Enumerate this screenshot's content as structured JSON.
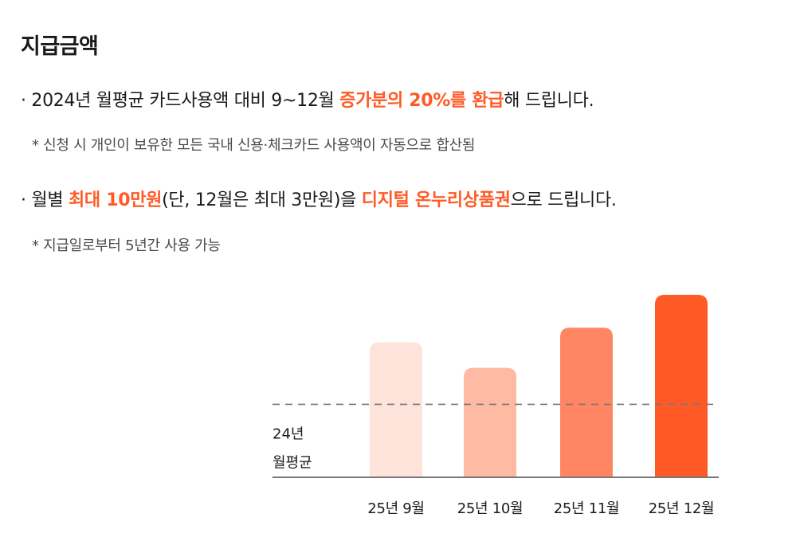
{
  "section": {
    "title": "지급금액"
  },
  "line1": {
    "prefix": "· 2024년 월평균 카드사용액 대비 9~12월 ",
    "highlight": "증가분의 20%를 환급",
    "suffix": "해 드립니다."
  },
  "note1": "* 신청 시 개인이 보유한 모든 국내 신용·체크카드 사용액이 자동으로 합산됨",
  "line2": {
    "prefix": "· 월별 ",
    "highlight1": "최대 10만원",
    "middle": "(단, 12월은 최대 3만원)을 ",
    "highlight2": "디지털 온누리상품권",
    "suffix": "으로 드립니다."
  },
  "note2": "* 지급일로부터 5년간 사용 가능",
  "chart_data": {
    "type": "bar",
    "categories": [
      "25년 9월",
      "25년 10월",
      "25년 11월",
      "25년 12월"
    ],
    "values": [
      1.85,
      1.5,
      2.05,
      2.5
    ],
    "bar_colors": [
      "#fde3da",
      "#febaa3",
      "#ff8563",
      "#ff5a26"
    ],
    "reference_line": {
      "value": 1.0,
      "label_lines": [
        "24년",
        "월평균"
      ],
      "style": "dashed",
      "color": "#777777"
    },
    "ylim": [
      0,
      2.5
    ],
    "title": "",
    "xlabel": "",
    "ylabel": "",
    "grid": false,
    "legend": "none"
  }
}
